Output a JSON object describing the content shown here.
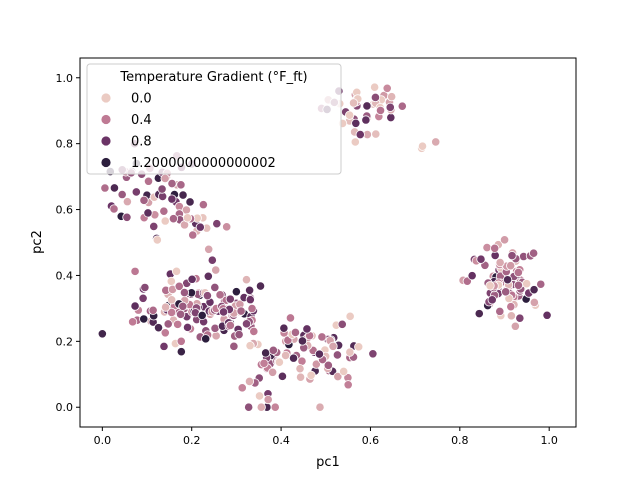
{
  "chart_data": {
    "type": "scatter",
    "title": "",
    "xlabel": "pc1",
    "ylabel": "pc2",
    "xlim": [
      -0.05,
      1.06
    ],
    "ylim": [
      -0.06,
      1.06
    ],
    "xticks": [
      0.0,
      0.2,
      0.4,
      0.6,
      0.8,
      1.0
    ],
    "yticks": [
      0.0,
      0.2,
      0.4,
      0.6,
      0.8,
      1.0
    ],
    "xtick_labels": [
      "0.0",
      "0.2",
      "0.4",
      "0.6",
      "0.8",
      "1.0"
    ],
    "ytick_labels": [
      "0.0",
      "0.2",
      "0.4",
      "0.6",
      "0.8",
      "1.0"
    ],
    "grid": false,
    "legend": {
      "title": "Temperature Gradient (°F_ft)",
      "placement": "top-left",
      "entries": [
        {
          "label": "0.0",
          "value": 0.0,
          "color": "#ebcbc3"
        },
        {
          "label": "0.4",
          "value": 0.4,
          "color": "#bf7a94"
        },
        {
          "label": "0.8",
          "value": 0.8,
          "color": "#6b3466"
        },
        {
          "label": "1.2000000000000002",
          "value": 1.2,
          "color": "#2c1e3d"
        }
      ]
    },
    "hue_range": [
      0.0,
      1.2
    ],
    "clusters": [
      {
        "cx": 0.58,
        "cy": 0.91,
        "sx": 0.045,
        "sy": 0.04,
        "n": 45,
        "hue_mean": 0.35
      },
      {
        "cx": 0.73,
        "cy": 0.77,
        "sx": 0.02,
        "sy": 0.02,
        "n": 3,
        "hue_mean": 0.05
      },
      {
        "cx": 0.11,
        "cy": 0.65,
        "sx": 0.06,
        "sy": 0.06,
        "n": 55,
        "hue_mean": 0.6
      },
      {
        "cx": 0.21,
        "cy": 0.55,
        "sx": 0.04,
        "sy": 0.05,
        "n": 18,
        "hue_mean": 0.5
      },
      {
        "cx": 0.2,
        "cy": 0.3,
        "sx": 0.06,
        "sy": 0.05,
        "n": 95,
        "hue_mean": 0.55
      },
      {
        "cx": 0.29,
        "cy": 0.29,
        "sx": 0.04,
        "sy": 0.05,
        "n": 45,
        "hue_mean": 0.6
      },
      {
        "cx": 0.35,
        "cy": 0.08,
        "sx": 0.025,
        "sy": 0.06,
        "n": 22,
        "hue_mean": 0.5
      },
      {
        "cx": 0.42,
        "cy": 0.18,
        "sx": 0.04,
        "sy": 0.04,
        "n": 28,
        "hue_mean": 0.45
      },
      {
        "cx": 0.51,
        "cy": 0.18,
        "sx": 0.04,
        "sy": 0.05,
        "n": 38,
        "hue_mean": 0.45
      },
      {
        "cx": 0.9,
        "cy": 0.38,
        "sx": 0.04,
        "sy": 0.06,
        "n": 95,
        "hue_mean": 0.45
      }
    ]
  }
}
